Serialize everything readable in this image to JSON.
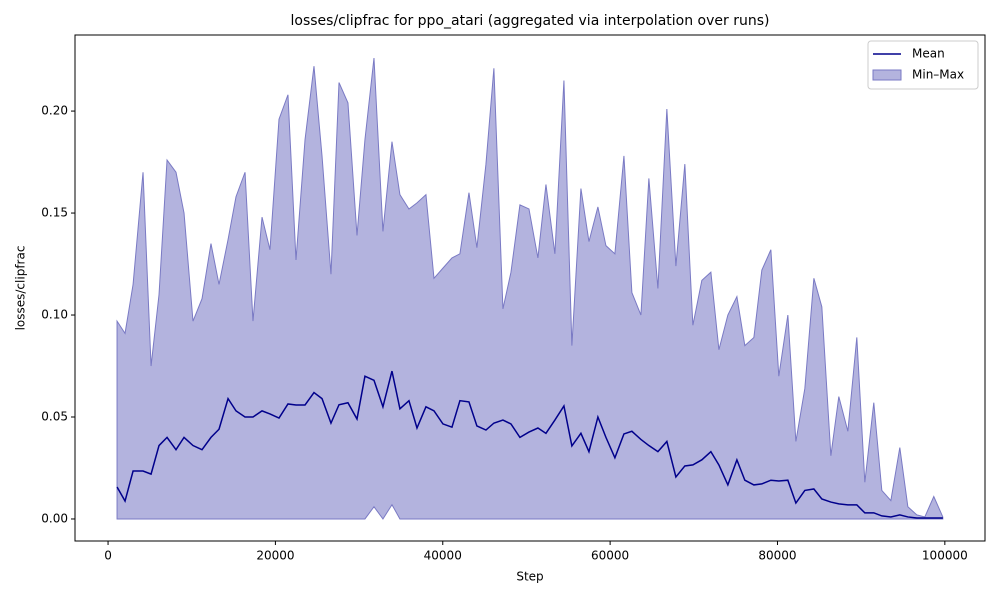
{
  "chart_data": {
    "type": "line_band",
    "title": "losses/clipfrac for ppo_atari (aggregated via interpolation over runs)",
    "xlabel": "Step",
    "ylabel": "losses/clipfrac",
    "x": [
      1075,
      2030,
      2990,
      4180,
      5140,
      6090,
      7050,
      8120,
      9080,
      10150,
      11230,
      12300,
      13260,
      14340,
      15290,
      16370,
      17320,
      18400,
      19350,
      20430,
      21500,
      22460,
      23540,
      24610,
      25570,
      26640,
      27600,
      28670,
      29750,
      30700,
      31780,
      32850,
      33930,
      34880,
      35960,
      36920,
      37990,
      38950,
      40020,
      41100,
      42050,
      43130,
      44080,
      45160,
      46110,
      47190,
      48150,
      49220,
      50300,
      51370,
      52330,
      53400,
      54480,
      55430,
      56510,
      57470,
      58540,
      59500,
      60570,
      61650,
      62600,
      63680,
      64630,
      65710,
      66780,
      67860,
      68930,
      69890,
      70960,
      72040,
      73000,
      74070,
      75150,
      76100,
      77180,
      78130,
      79210,
      80160,
      81240,
      82200,
      83270,
      84350,
      85300,
      86380,
      87330,
      88410,
      89480,
      90440,
      91510,
      92470,
      93550,
      94620,
      95580,
      96650,
      97610,
      98680,
      99760
    ],
    "series": [
      {
        "name": "Mean",
        "color": "#00008b",
        "values": [
          0.0157,
          0.0088,
          0.0235,
          0.0235,
          0.022,
          0.036,
          0.04,
          0.034,
          0.04,
          0.036,
          0.034,
          0.04,
          0.044,
          0.059,
          0.053,
          0.05,
          0.05,
          0.053,
          0.0515,
          0.0495,
          0.0564,
          0.0559,
          0.0559,
          0.062,
          0.059,
          0.047,
          0.056,
          0.057,
          0.049,
          0.07,
          0.068,
          0.055,
          0.0725,
          0.054,
          0.058,
          0.0446,
          0.055,
          0.053,
          0.0466,
          0.045,
          0.058,
          0.0574,
          0.0456,
          0.0436,
          0.047,
          0.0485,
          0.0466,
          0.04,
          0.0426,
          0.0446,
          0.042,
          0.0485,
          0.0554,
          0.0358,
          0.042,
          0.033,
          0.05,
          0.04,
          0.03,
          0.0417,
          0.043,
          0.039,
          0.036,
          0.033,
          0.038,
          0.0206,
          0.026,
          0.0265,
          0.029,
          0.033,
          0.0265,
          0.0167,
          0.029,
          0.019,
          0.0167,
          0.0172,
          0.019,
          0.0186,
          0.019,
          0.0078,
          0.014,
          0.0147,
          0.0098,
          0.0083,
          0.0074,
          0.0069,
          0.0069,
          0.003,
          0.003,
          0.0015,
          0.001,
          0.002,
          0.001,
          0.0005,
          0.0005,
          0.0005,
          0.0005
        ]
      },
      {
        "name": "Min–Max",
        "color": "#b3b3de",
        "lower": [
          0,
          0,
          0,
          0,
          0,
          0,
          0,
          0,
          0,
          0,
          0,
          0,
          0,
          0,
          0,
          0,
          0,
          0,
          0,
          0,
          0,
          0,
          0,
          0,
          0,
          0,
          0,
          0,
          0,
          0,
          0.006,
          0,
          0.007,
          0,
          0,
          0,
          0,
          0,
          0,
          0,
          0,
          0,
          0,
          0,
          0,
          0,
          0,
          0,
          0,
          0,
          0,
          0,
          0,
          0,
          0,
          0,
          0,
          0,
          0,
          0,
          0,
          0,
          0,
          0,
          0,
          0,
          0,
          0,
          0,
          0,
          0,
          0,
          0,
          0,
          0,
          0,
          0,
          0,
          0,
          0,
          0,
          0,
          0,
          0,
          0,
          0,
          0,
          0,
          0,
          0,
          0,
          0,
          0,
          0,
          0,
          0,
          0
        ],
        "upper": [
          0.097,
          0.091,
          0.115,
          0.17,
          0.075,
          0.11,
          0.176,
          0.17,
          0.15,
          0.097,
          0.108,
          0.135,
          0.115,
          0.137,
          0.158,
          0.17,
          0.097,
          0.148,
          0.132,
          0.196,
          0.208,
          0.127,
          0.186,
          0.222,
          0.178,
          0.12,
          0.214,
          0.204,
          0.139,
          0.186,
          0.226,
          0.141,
          0.185,
          0.159,
          0.152,
          0.155,
          0.159,
          0.118,
          0.123,
          0.128,
          0.13,
          0.16,
          0.133,
          0.174,
          0.221,
          0.103,
          0.121,
          0.154,
          0.152,
          0.128,
          0.164,
          0.13,
          0.215,
          0.085,
          0.162,
          0.136,
          0.153,
          0.134,
          0.13,
          0.178,
          0.111,
          0.1,
          0.167,
          0.113,
          0.201,
          0.124,
          0.174,
          0.095,
          0.117,
          0.121,
          0.083,
          0.1,
          0.109,
          0.085,
          0.089,
          0.122,
          0.132,
          0.07,
          0.1,
          0.038,
          0.064,
          0.118,
          0.104,
          0.031,
          0.06,
          0.043,
          0.089,
          0.018,
          0.057,
          0.014,
          0.009,
          0.035,
          0.006,
          0.002,
          0.001,
          0.011,
          0.001
        ]
      }
    ],
    "xlim": [
      -3950,
      104800
    ],
    "ylim": [
      -0.0108,
      0.2373
    ],
    "xticks": [
      0,
      20000,
      40000,
      60000,
      80000,
      100000
    ],
    "yticks": [
      {
        "value": 0,
        "label": "0.00"
      },
      {
        "value": 0.05,
        "label": "0.05"
      },
      {
        "value": 0.1,
        "label": "0.10"
      },
      {
        "value": 0.15,
        "label": "0.15"
      },
      {
        "value": 0.2,
        "label": "0.20"
      }
    ],
    "grid": false,
    "legend": "upper right"
  }
}
